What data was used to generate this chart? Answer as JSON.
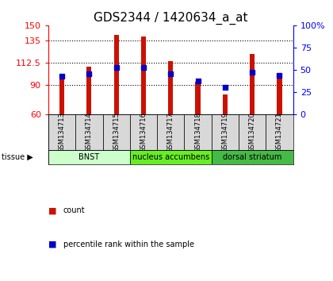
{
  "title": "GDS2344 / 1420634_a_at",
  "samples": [
    "GSM134713",
    "GSM134714",
    "GSM134715",
    "GSM134716",
    "GSM134717",
    "GSM134718",
    "GSM134719",
    "GSM134720",
    "GSM134721"
  ],
  "counts": [
    100,
    108,
    140,
    139,
    114,
    93,
    80,
    121,
    100
  ],
  "percentiles": [
    43,
    46,
    53,
    53,
    46,
    38,
    30,
    47,
    44
  ],
  "ymin": 60,
  "ymax": 150,
  "yticks": [
    60,
    90,
    112.5,
    135,
    150
  ],
  "ytick_labels": [
    "60",
    "90",
    "112.5",
    "135",
    "150"
  ],
  "right_yticks": [
    0,
    25,
    50,
    75,
    100
  ],
  "right_ytick_labels": [
    "0",
    "25",
    "50",
    "75",
    "100%"
  ],
  "bar_color": "#cc1100",
  "dot_color": "#0000cc",
  "bar_width": 0.18,
  "groups": [
    {
      "label": "BNST",
      "start": 0,
      "end": 3,
      "color": "#ccffcc"
    },
    {
      "label": "nucleus accumbens",
      "start": 3,
      "end": 6,
      "color": "#66ee22"
    },
    {
      "label": "dorsal striatum",
      "start": 6,
      "end": 9,
      "color": "#44bb44"
    }
  ],
  "tissue_label": "tissue",
  "legend_count_label": "count",
  "legend_pct_label": "percentile rank within the sample",
  "bg_plot": "#ffffff",
  "bg_sample_row": "#cccccc",
  "title_fontsize": 11,
  "tick_fontsize": 8,
  "sample_fontsize": 6,
  "tissue_fontsize": 7,
  "legend_fontsize": 7
}
